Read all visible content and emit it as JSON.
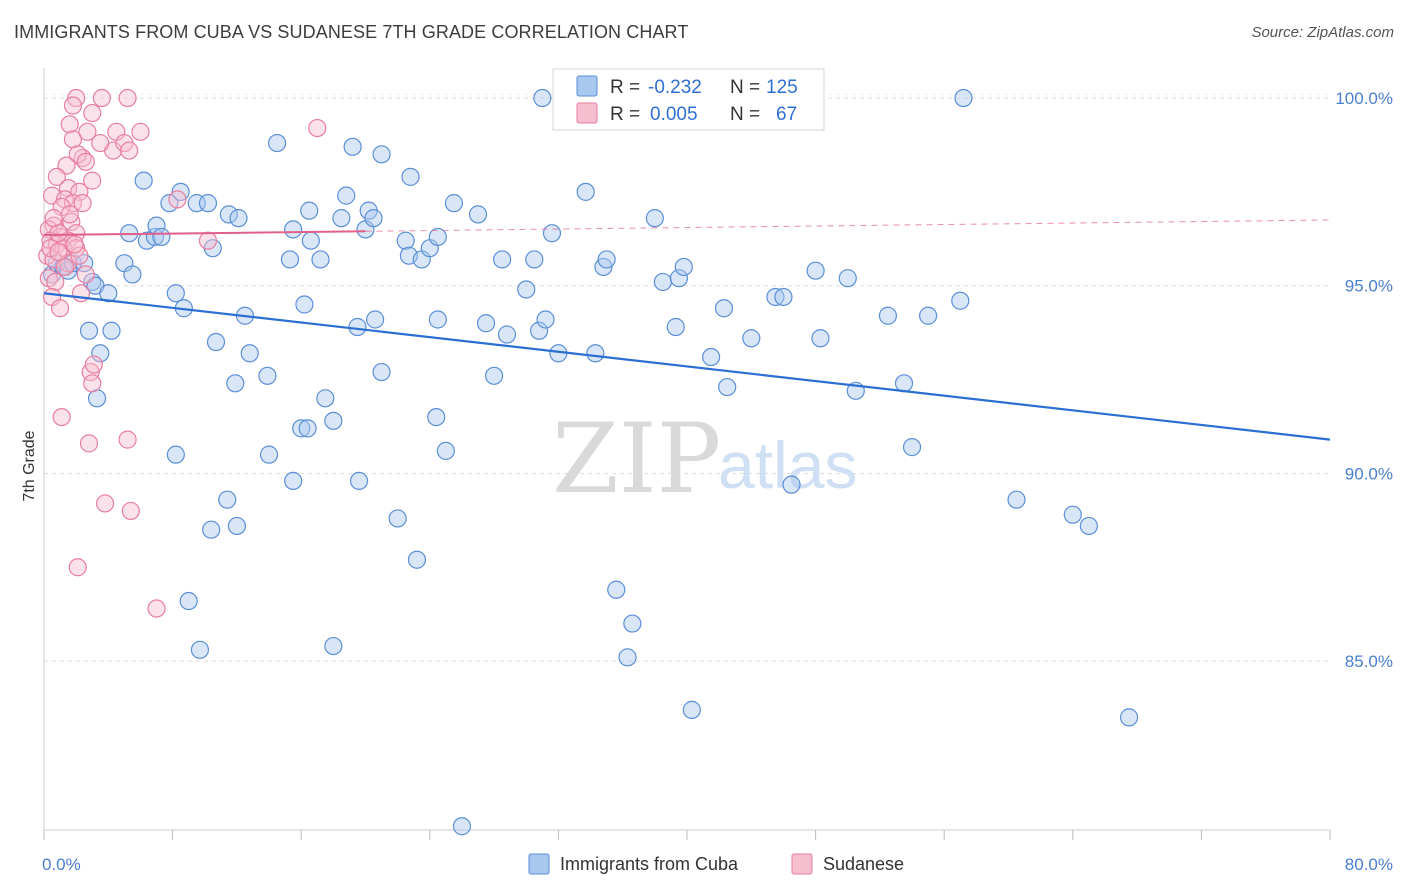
{
  "header": {
    "title": "IMMIGRANTS FROM CUBA VS SUDANESE 7TH GRADE CORRELATION CHART",
    "source": "Source: ZipAtlas.com"
  },
  "watermark": {
    "zip": "ZIP",
    "atlas": "atlas"
  },
  "colors": {
    "cuba_fill": "#a9c8f0",
    "cuba_stroke": "#5b8fd6",
    "cuba_line": "#2a6fd1",
    "sudan_fill": "#f6bfd0",
    "sudan_stroke": "#e77fa0",
    "sudan_line": "#e0608a",
    "grid": "#dddddd",
    "axis_label": "#4a7fcf"
  },
  "legend": {
    "rows": [
      {
        "r_label": "R =",
        "r_value": "-0.232",
        "n_label": "N =",
        "n_value": "125"
      },
      {
        "r_label": "R =",
        "r_value": "0.005",
        "n_label": "N =",
        "n_value": "67"
      }
    ]
  },
  "bottom_legend": {
    "items": [
      {
        "label": "Immigrants from Cuba"
      },
      {
        "label": "Sudanese"
      }
    ]
  },
  "chart_data": {
    "type": "scatter",
    "title": "IMMIGRANTS FROM CUBA VS SUDANESE 7TH GRADE CORRELATION CHART",
    "ylabel": "7th Grade",
    "xlim": [
      0,
      80
    ],
    "ylim": [
      80.5,
      100.8
    ],
    "x_tick_labels": [
      "0.0%",
      "80.0%"
    ],
    "y_ticks": [
      85,
      90,
      95,
      100
    ],
    "y_tick_labels": [
      "85.0%",
      "90.0%",
      "95.0%",
      "100.0%"
    ],
    "grid": true,
    "legend_position": "top-center",
    "series": [
      {
        "name": "Immigrants from Cuba",
        "r": -0.232,
        "n": 125,
        "trend": {
          "x": [
            0,
            80
          ],
          "y": [
            94.8,
            90.9
          ]
        },
        "points": [
          [
            0.5,
            95.3
          ],
          [
            0.8,
            95.6
          ],
          [
            1.2,
            95.5
          ],
          [
            1.5,
            95.4
          ],
          [
            1.8,
            95.6
          ],
          [
            2.5,
            95.6
          ],
          [
            3.0,
            95.1
          ],
          [
            3.2,
            95.0
          ],
          [
            4.0,
            94.8
          ],
          [
            3.5,
            93.2
          ],
          [
            2.8,
            93.8
          ],
          [
            3.3,
            92.0
          ],
          [
            5.0,
            95.6
          ],
          [
            5.5,
            95.3
          ],
          [
            4.2,
            93.8
          ],
          [
            5.3,
            96.4
          ],
          [
            6.2,
            97.8
          ],
          [
            6.4,
            96.2
          ],
          [
            6.9,
            96.3
          ],
          [
            7.0,
            96.6
          ],
          [
            7.3,
            96.3
          ],
          [
            7.8,
            97.2
          ],
          [
            8.5,
            97.5
          ],
          [
            8.2,
            94.8
          ],
          [
            8.7,
            94.4
          ],
          [
            9.5,
            97.2
          ],
          [
            10.2,
            97.2
          ],
          [
            10.5,
            96.0
          ],
          [
            11.5,
            96.9
          ],
          [
            12.1,
            96.8
          ],
          [
            12.5,
            94.2
          ],
          [
            12.8,
            93.2
          ],
          [
            10.7,
            93.5
          ],
          [
            11.9,
            92.4
          ],
          [
            14.5,
            98.8
          ],
          [
            15.5,
            96.5
          ],
          [
            16.5,
            97.0
          ],
          [
            16.6,
            96.2
          ],
          [
            15.3,
            95.7
          ],
          [
            16.2,
            94.5
          ],
          [
            17.2,
            95.7
          ],
          [
            18.5,
            96.8
          ],
          [
            19.2,
            98.7
          ],
          [
            18.8,
            97.4
          ],
          [
            20.0,
            96.5
          ],
          [
            20.2,
            97.0
          ],
          [
            21.0,
            98.5
          ],
          [
            20.5,
            96.8
          ],
          [
            19.5,
            93.9
          ],
          [
            20.6,
            94.1
          ],
          [
            22.5,
            96.2
          ],
          [
            22.7,
            95.8
          ],
          [
            22.8,
            97.9
          ],
          [
            23.5,
            95.7
          ],
          [
            24.0,
            96.0
          ],
          [
            24.5,
            96.3
          ],
          [
            8.2,
            90.5
          ],
          [
            13.9,
            92.6
          ],
          [
            14.0,
            90.5
          ],
          [
            11.4,
            89.3
          ],
          [
            10.4,
            88.5
          ],
          [
            12.0,
            88.6
          ],
          [
            15.5,
            89.8
          ],
          [
            16.0,
            91.2
          ],
          [
            16.4,
            91.2
          ],
          [
            17.5,
            92.0
          ],
          [
            18.0,
            91.4
          ],
          [
            19.6,
            89.8
          ],
          [
            21.0,
            92.7
          ],
          [
            22.0,
            88.8
          ],
          [
            23.2,
            87.7
          ],
          [
            24.4,
            91.5
          ],
          [
            9.0,
            86.6
          ],
          [
            9.7,
            85.3
          ],
          [
            18.0,
            85.4
          ],
          [
            24.5,
            94.1
          ],
          [
            25.0,
            90.6
          ],
          [
            26.0,
            80.6
          ],
          [
            27.0,
            96.9
          ],
          [
            27.5,
            94.0
          ],
          [
            28.0,
            92.6
          ],
          [
            28.5,
            95.7
          ],
          [
            28.8,
            93.7
          ],
          [
            30.0,
            94.9
          ],
          [
            30.5,
            95.7
          ],
          [
            30.8,
            93.8
          ],
          [
            31.2,
            94.1
          ],
          [
            31.6,
            96.4
          ],
          [
            32.0,
            93.2
          ],
          [
            34.3,
            93.2
          ],
          [
            33.7,
            97.5
          ],
          [
            34.8,
            95.5
          ],
          [
            35.0,
            95.7
          ],
          [
            35.6,
            86.9
          ],
          [
            36.3,
            85.1
          ],
          [
            36.6,
            86.0
          ],
          [
            38.0,
            96.8
          ],
          [
            38.5,
            95.1
          ],
          [
            39.5,
            95.2
          ],
          [
            39.3,
            93.9
          ],
          [
            39.8,
            95.5
          ],
          [
            40.3,
            83.7
          ],
          [
            41.5,
            93.1
          ],
          [
            42.3,
            94.4
          ],
          [
            42.5,
            92.3
          ],
          [
            44.0,
            93.6
          ],
          [
            45.5,
            94.7
          ],
          [
            46.0,
            94.7
          ],
          [
            46.5,
            89.7
          ],
          [
            48.0,
            95.4
          ],
          [
            48.3,
            93.6
          ],
          [
            50.0,
            95.2
          ],
          [
            50.5,
            92.2
          ],
          [
            52.5,
            94.2
          ],
          [
            53.5,
            92.4
          ],
          [
            54.0,
            90.7
          ],
          [
            55.0,
            94.2
          ],
          [
            57.0,
            94.6
          ],
          [
            57.2,
            100.0
          ],
          [
            60.5,
            89.3
          ],
          [
            64.0,
            88.9
          ],
          [
            65.0,
            88.6
          ],
          [
            67.5,
            83.5
          ],
          [
            31.0,
            100.0
          ],
          [
            25.5,
            97.2
          ]
        ]
      },
      {
        "name": "Sudanese",
        "r": 0.005,
        "n": 67,
        "trend": {
          "x": [
            0,
            20
          ],
          "y": [
            96.35,
            96.45
          ]
        },
        "trend_dashed": {
          "x": [
            20,
            80
          ],
          "y": [
            96.45,
            96.75
          ]
        },
        "points": [
          [
            2.0,
            100.0
          ],
          [
            3.6,
            100.0
          ],
          [
            5.2,
            100.0
          ],
          [
            1.8,
            99.8
          ],
          [
            3.0,
            99.6
          ],
          [
            1.6,
            99.3
          ],
          [
            2.7,
            99.1
          ],
          [
            4.5,
            99.1
          ],
          [
            4.3,
            98.6
          ],
          [
            5.0,
            98.8
          ],
          [
            1.8,
            98.9
          ],
          [
            3.5,
            98.8
          ],
          [
            2.4,
            98.4
          ],
          [
            5.3,
            98.6
          ],
          [
            6.0,
            99.1
          ],
          [
            2.1,
            98.5
          ],
          [
            1.4,
            98.2
          ],
          [
            2.6,
            98.3
          ],
          [
            0.8,
            97.9
          ],
          [
            3.0,
            97.8
          ],
          [
            1.5,
            97.6
          ],
          [
            2.2,
            97.5
          ],
          [
            0.5,
            97.4
          ],
          [
            1.3,
            97.3
          ],
          [
            1.8,
            97.2
          ],
          [
            1.1,
            97.1
          ],
          [
            2.4,
            97.2
          ],
          [
            8.3,
            97.3
          ],
          [
            0.6,
            96.6
          ],
          [
            1.7,
            96.7
          ],
          [
            2.0,
            96.4
          ],
          [
            0.3,
            96.5
          ],
          [
            1.0,
            96.3
          ],
          [
            1.5,
            96.2
          ],
          [
            0.4,
            96.2
          ],
          [
            0.8,
            96.1
          ],
          [
            1.2,
            96.0
          ],
          [
            2.0,
            96.0
          ],
          [
            0.2,
            95.8
          ],
          [
            0.6,
            95.7
          ],
          [
            1.5,
            95.6
          ],
          [
            2.2,
            95.8
          ],
          [
            0.3,
            95.2
          ],
          [
            0.7,
            95.1
          ],
          [
            0.5,
            94.7
          ],
          [
            2.3,
            94.8
          ],
          [
            1.0,
            94.4
          ],
          [
            10.2,
            96.2
          ],
          [
            17.0,
            99.2
          ],
          [
            2.9,
            92.7
          ],
          [
            3.1,
            92.9
          ],
          [
            3.0,
            92.4
          ],
          [
            1.1,
            91.5
          ],
          [
            2.8,
            90.8
          ],
          [
            5.2,
            90.9
          ],
          [
            3.8,
            89.2
          ],
          [
            5.4,
            89.0
          ],
          [
            2.1,
            87.5
          ],
          [
            7.0,
            86.4
          ],
          [
            0.9,
            96.4
          ],
          [
            1.6,
            96.9
          ],
          [
            0.4,
            96.0
          ],
          [
            1.3,
            95.5
          ],
          [
            2.6,
            95.3
          ],
          [
            0.9,
            95.9
          ],
          [
            1.9,
            96.1
          ],
          [
            0.6,
            96.8
          ]
        ]
      }
    ]
  }
}
